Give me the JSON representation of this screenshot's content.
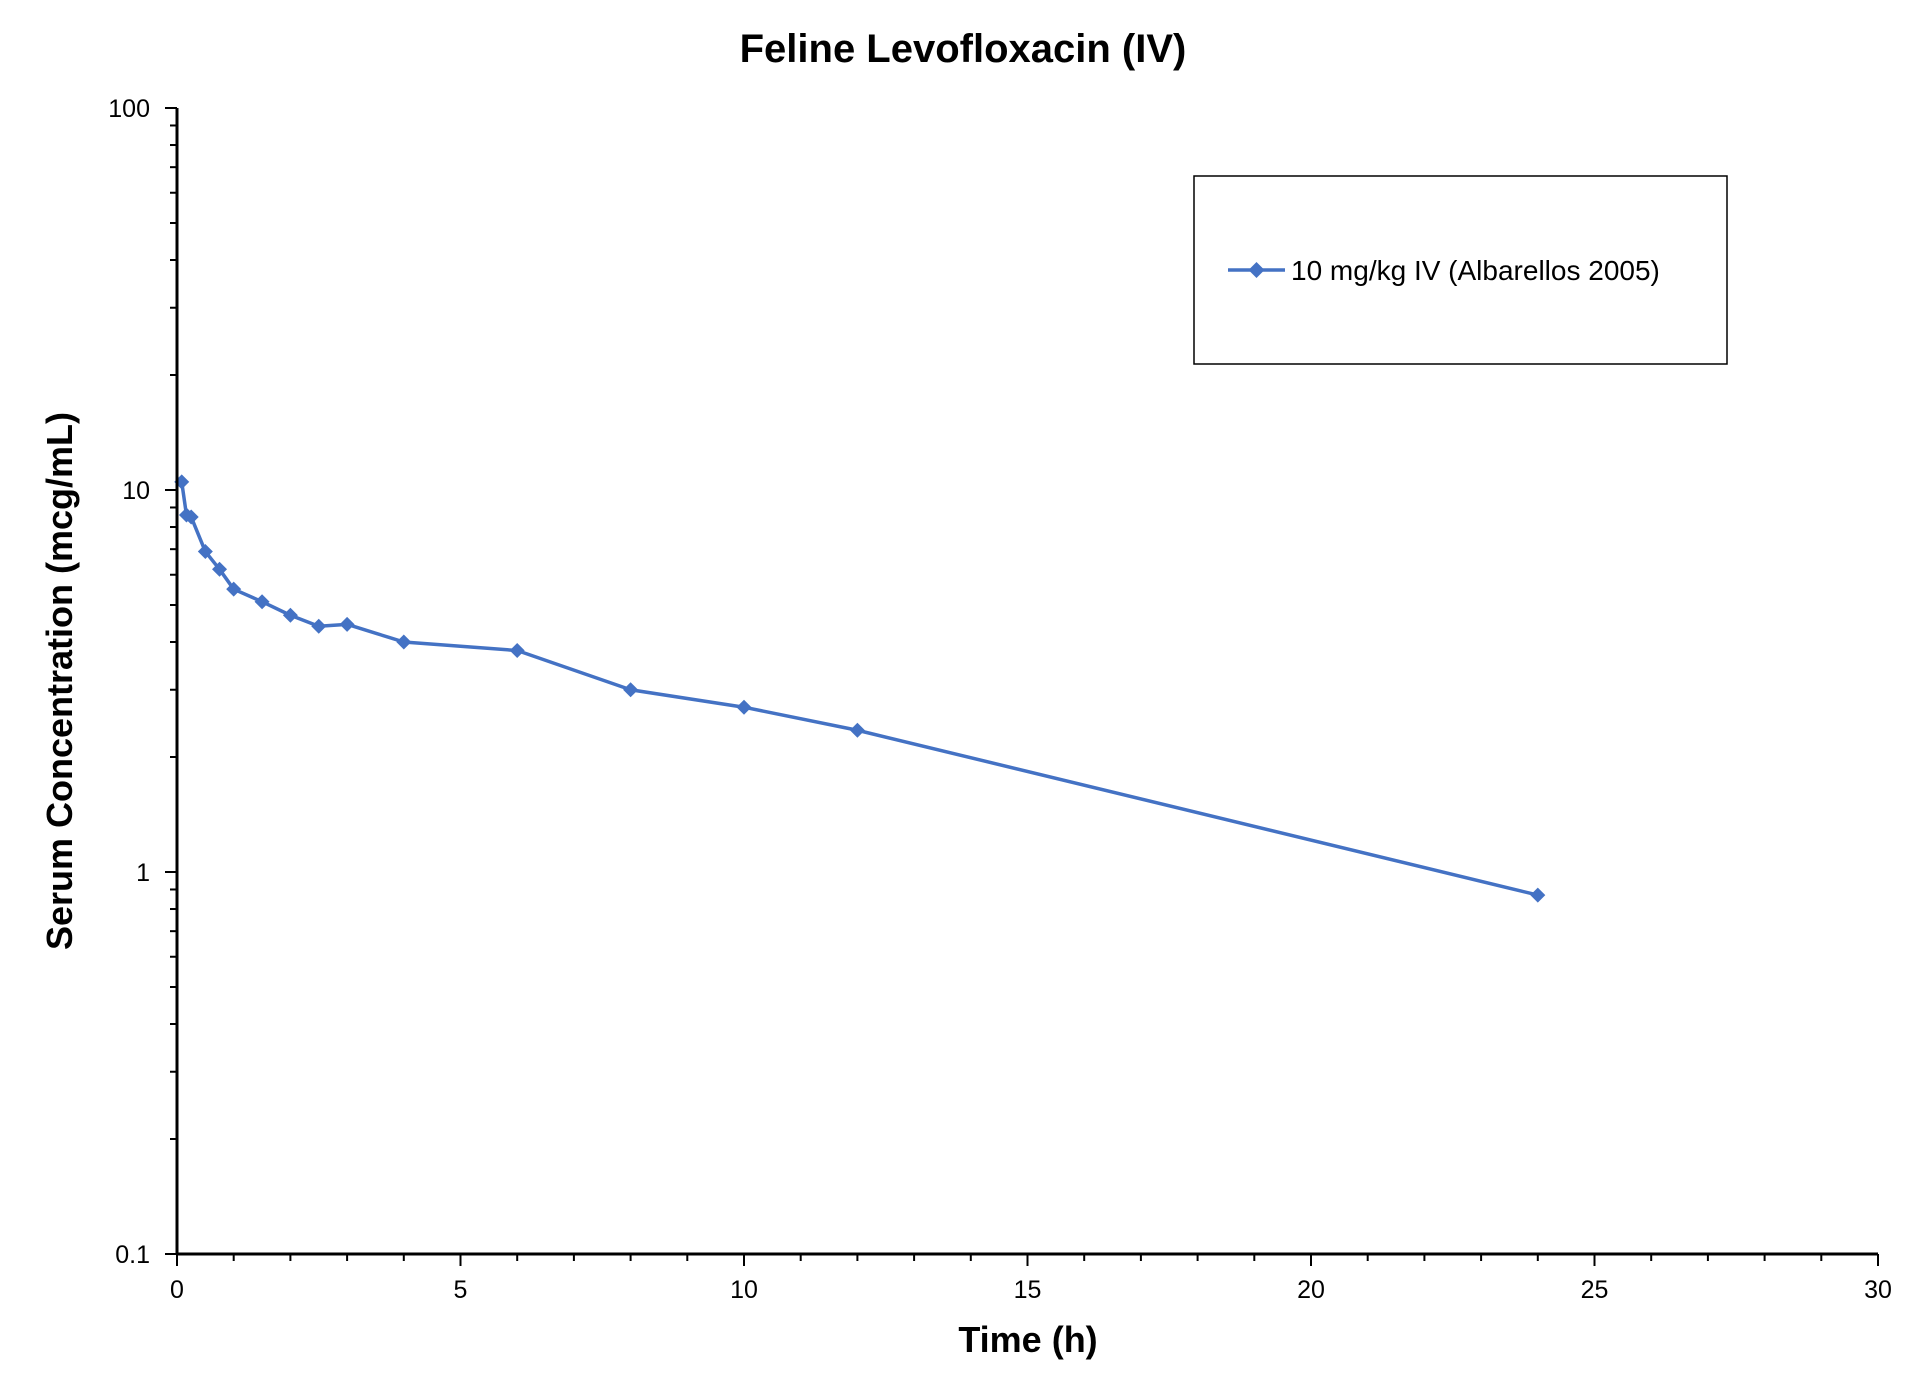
{
  "chart_data": {
    "type": "line",
    "title": "Feline Levofloxacin (IV)",
    "xlabel": "Time (h)",
    "ylabel": "Serum Concentration (mcg/mL)",
    "xlim": [
      0,
      30
    ],
    "ylim": [
      0.1,
      100
    ],
    "yscale": "log",
    "x_ticks": [
      0,
      5,
      10,
      15,
      20,
      25,
      30
    ],
    "x_tick_labels": [
      "0",
      "5",
      "10",
      "15",
      "20",
      "25",
      "30"
    ],
    "y_ticks": [
      0.1,
      1,
      10,
      100
    ],
    "y_tick_labels": [
      "0.1",
      "1",
      "10",
      "100"
    ],
    "grid": false,
    "legend_position": "top-right",
    "series": [
      {
        "name": "10 mg/kg IV (Albarellos 2005)",
        "color": "#4472C4",
        "marker": "diamond",
        "x": [
          0.083,
          0.167,
          0.25,
          0.5,
          0.75,
          1,
          1.5,
          2,
          2.5,
          3,
          4,
          6,
          8,
          10,
          12,
          24
        ],
        "y": [
          10.5,
          8.6,
          8.5,
          6.9,
          6.2,
          5.5,
          5.1,
          4.7,
          4.4,
          4.45,
          4.0,
          3.8,
          3.0,
          2.7,
          2.35,
          0.87
        ]
      }
    ]
  }
}
